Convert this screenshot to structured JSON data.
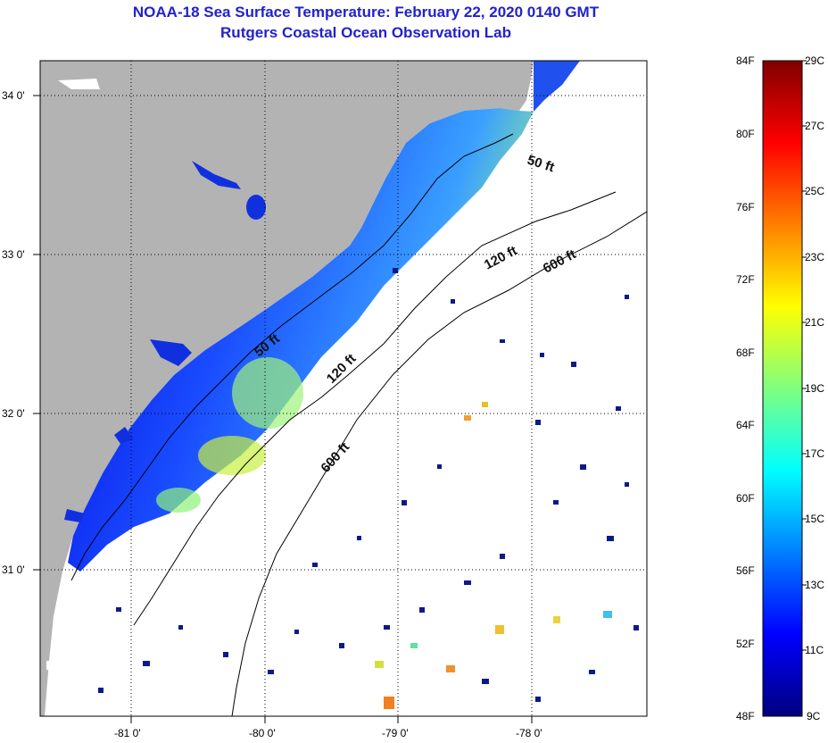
{
  "title": {
    "line1": "NOAA-18 Sea Surface Temperature:  February 22, 2020 0140 GMT",
    "line2": "Rutgers Coastal Ocean Observation Lab"
  },
  "map": {
    "lat_labels": [
      "34 0'",
      "33 0'",
      "32 0'",
      "31 0'"
    ],
    "lon_labels": [
      "-81 0'",
      "-80 0'",
      "-79 0'",
      "-78 0'"
    ],
    "depth_labels": [
      "50 ft",
      "120 ft",
      "600 ft",
      "50 ft",
      "120 ft",
      "600 ft"
    ],
    "colors": {
      "land": "#b3b3b3",
      "ocean_nodata": "#ffffff",
      "grid": "#000000"
    }
  },
  "colorbar": {
    "f_labels": [
      "84F",
      "80F",
      "76F",
      "72F",
      "68F",
      "64F",
      "60F",
      "56F",
      "52F",
      "48F"
    ],
    "c_labels": [
      "29C",
      "27C",
      "25C",
      "23C",
      "21C",
      "19C",
      "17C",
      "15C",
      "13C",
      "11C",
      "9C"
    ],
    "colormap": [
      "#00007f",
      "#0000ff",
      "#007fff",
      "#00ffff",
      "#7fff7f",
      "#ffff00",
      "#ff7f00",
      "#ff0000",
      "#7f0000"
    ]
  }
}
